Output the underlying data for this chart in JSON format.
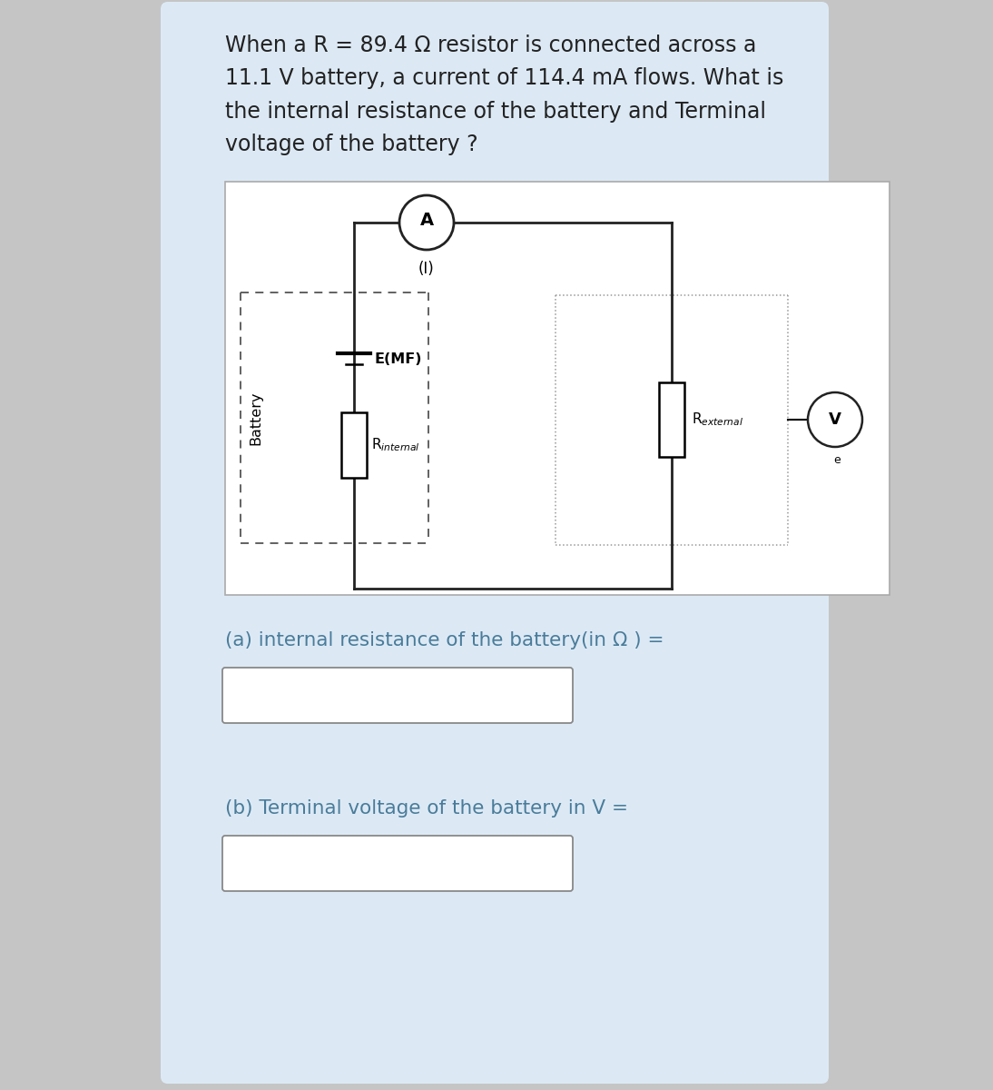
{
  "bg_outer": "#c5c5c5",
  "bg_card": "#dce9f5",
  "bg_diagram": "#ffffff",
  "bg_input_box": "#ffffff",
  "text_color_title": "#222222",
  "text_color_label": "#4a7c9a",
  "title_text": "When a R = 89.4 Ω resistor is connected across a\n11.1 V battery, a current of 114.4 mA flows. What is\nthe internal resistance of the battery and Terminal\nvoltage of the battery ?",
  "label_a": "(a) internal resistance of the battery(in Ω ) =",
  "label_b": "(b) Terminal voltage of the battery in V =",
  "title_fontsize": 17,
  "label_fontsize": 15.5,
  "circuit_line_color": "#222222",
  "dashed_line_color": "#555555",
  "dotted_line_color": "#999999"
}
